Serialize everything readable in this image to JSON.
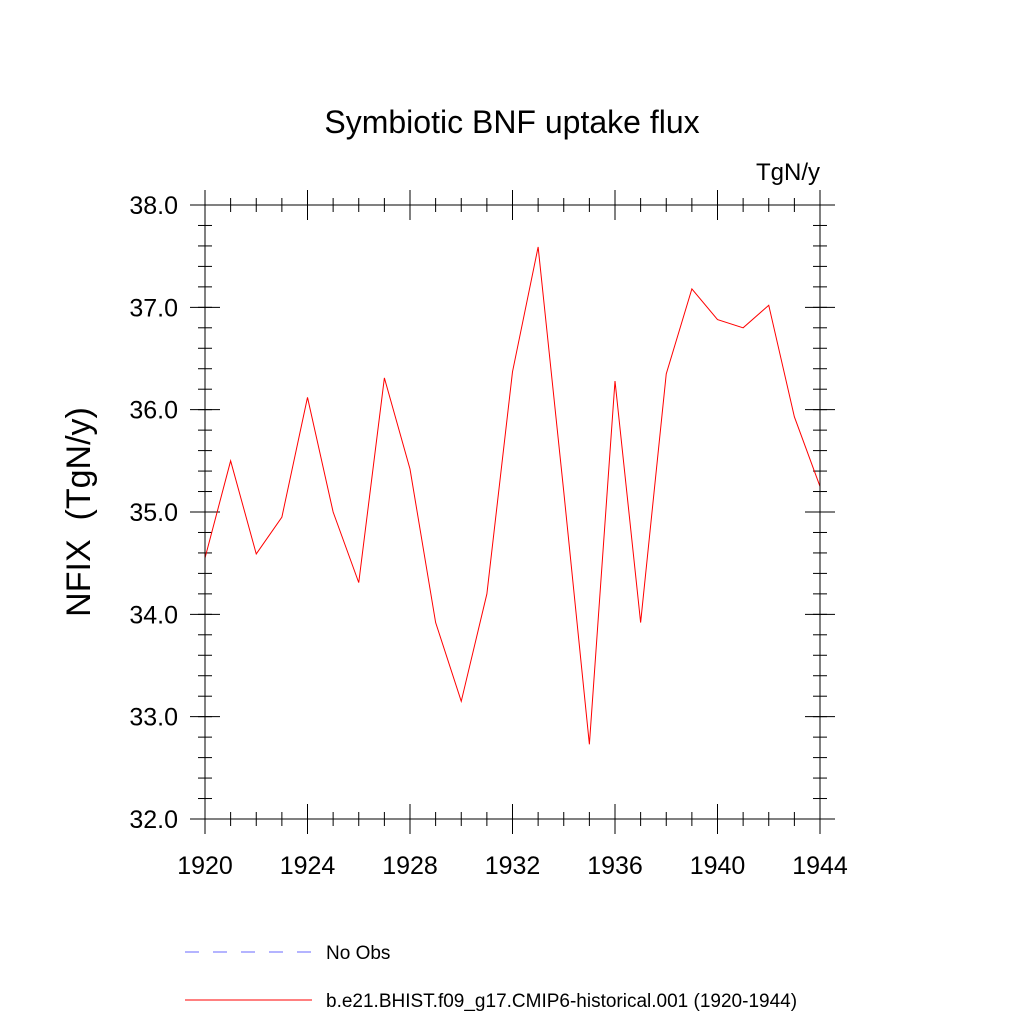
{
  "chart_data": {
    "type": "line",
    "title": "Symbiotic BNF uptake flux",
    "units": "TgN/y",
    "xlabel": "",
    "ylabel": "NFIX  (TgN/y)",
    "xlim": [
      1920,
      1944
    ],
    "ylim": [
      32.0,
      38.0
    ],
    "x_ticks": [
      1920,
      1924,
      1928,
      1932,
      1936,
      1940,
      1944
    ],
    "x_tick_labels": [
      "1920",
      "1924",
      "1928",
      "1932",
      "1936",
      "1940",
      "1944"
    ],
    "y_ticks": [
      32.0,
      33.0,
      34.0,
      35.0,
      36.0,
      37.0,
      38.0
    ],
    "y_tick_labels": [
      "32.0",
      "33.0",
      "34.0",
      "35.0",
      "36.0",
      "37.0",
      "38.0"
    ],
    "grid": false,
    "legend_position": "bottom",
    "x": [
      1920,
      1921,
      1922,
      1923,
      1924,
      1925,
      1926,
      1927,
      1928,
      1929,
      1930,
      1931,
      1932,
      1933,
      1934,
      1935,
      1936,
      1937,
      1938,
      1939,
      1940,
      1941,
      1942,
      1943,
      1944
    ],
    "series": [
      {
        "name": "b.e21.BHIST.f09_g17.CMIP6-historical.001 (1920-1944)",
        "color": "#ff0000",
        "style": "solid",
        "values": [
          34.55,
          35.5,
          34.59,
          34.95,
          36.12,
          35.0,
          34.31,
          36.31,
          35.42,
          33.92,
          33.15,
          34.2,
          36.37,
          37.59,
          35.2,
          32.73,
          36.28,
          33.92,
          36.35,
          37.18,
          36.88,
          36.8,
          37.02,
          35.93,
          35.25
        ]
      }
    ],
    "legend": [
      {
        "label": "No Obs",
        "color": "#6a6aff",
        "style": "dashed"
      },
      {
        "label": "b.e21.BHIST.f09_g17.CMIP6-historical.001 (1920-1944)",
        "color": "#ff0000",
        "style": "solid"
      }
    ]
  }
}
